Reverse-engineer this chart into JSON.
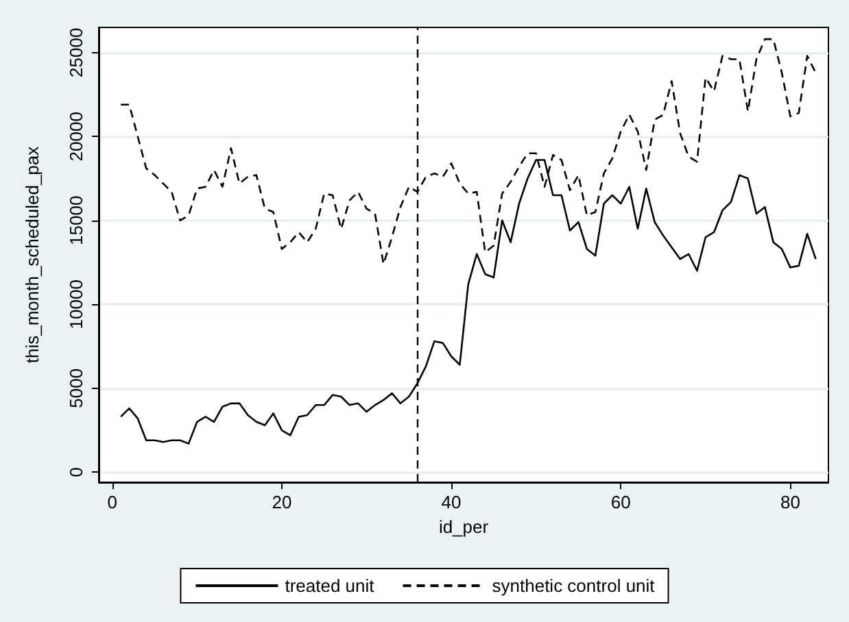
{
  "chart_data": {
    "type": "line",
    "xlabel": "id_per",
    "ylabel": "this_month_scheduled_pax",
    "x": [
      1,
      2,
      3,
      4,
      5,
      6,
      7,
      8,
      9,
      10,
      11,
      12,
      13,
      14,
      15,
      16,
      17,
      18,
      19,
      20,
      21,
      22,
      23,
      24,
      25,
      26,
      27,
      28,
      29,
      30,
      31,
      32,
      33,
      34,
      35,
      36,
      37,
      38,
      39,
      40,
      41,
      42,
      43,
      44,
      45,
      46,
      47,
      48,
      49,
      50,
      51,
      52,
      53,
      54,
      55,
      56,
      57,
      58,
      59,
      60,
      61,
      62,
      63,
      64,
      65,
      66,
      67,
      68,
      69,
      70,
      71,
      72,
      73,
      74,
      75,
      76,
      77,
      78,
      79,
      80,
      81,
      82,
      83
    ],
    "series": [
      {
        "name": "treated unit",
        "color": "#000000",
        "line_style": "solid",
        "values": [
          3300,
          3800,
          3200,
          1900,
          1900,
          1800,
          1900,
          1900,
          1700,
          3000,
          3300,
          3000,
          3900,
          4100,
          4100,
          3400,
          3000,
          2800,
          3500,
          2500,
          2200,
          3300,
          3400,
          4000,
          4000,
          4600,
          4500,
          4000,
          4100,
          3600,
          4000,
          4300,
          4700,
          4100,
          4500,
          5300,
          6300,
          7800,
          7700,
          6900,
          6400,
          11200,
          13000,
          11800,
          11600,
          15000,
          13700,
          16000,
          17500,
          18600,
          18600,
          16500,
          16500,
          14400,
          14900,
          13300,
          12900,
          16000,
          16500,
          16000,
          17000,
          14500,
          16900,
          14900,
          14100,
          13400,
          12700,
          13000,
          12000,
          14000,
          14300,
          15600,
          16100,
          17700,
          17500,
          15400,
          15800,
          13700,
          13300,
          12200,
          12300,
          14200,
          12700
        ]
      },
      {
        "name": "synthetic control unit",
        "color": "#000000",
        "line_style": "dashed",
        "values": [
          21900,
          21900,
          20000,
          18100,
          17700,
          17200,
          16700,
          15000,
          15300,
          16900,
          17000,
          18000,
          17000,
          19300,
          17200,
          17600,
          17700,
          15700,
          15500,
          13300,
          13700,
          14300,
          13700,
          14500,
          16600,
          16500,
          14500,
          16200,
          16700,
          15700,
          15400,
          12400,
          14000,
          15800,
          17000,
          16700,
          17600,
          17800,
          17600,
          18400,
          17200,
          16600,
          16700,
          13100,
          13500,
          16600,
          17300,
          18200,
          19000,
          19000,
          17000,
          18900,
          18600,
          16800,
          17700,
          15300,
          15500,
          17800,
          18700,
          20300,
          21300,
          20300,
          18000,
          21000,
          21300,
          23300,
          20200,
          18800,
          18500,
          23500,
          22700,
          24800,
          24600,
          24600,
          21500,
          24600,
          25800,
          25800,
          23800,
          21200,
          21400,
          24800,
          23800
        ]
      }
    ],
    "xlim": [
      -1.6,
      84.5
    ],
    "xticks": [
      0,
      20,
      40,
      60,
      80
    ],
    "ylim": [
      -600,
      26500
    ],
    "yticks": [
      0,
      5000,
      10000,
      15000,
      20000,
      25000
    ],
    "grid": "y",
    "legend": "bottom",
    "marker": "none",
    "ref_lines": [
      {
        "axis": "x",
        "value": 36,
        "line_style": "dashed",
        "color": "#000000"
      }
    ]
  }
}
